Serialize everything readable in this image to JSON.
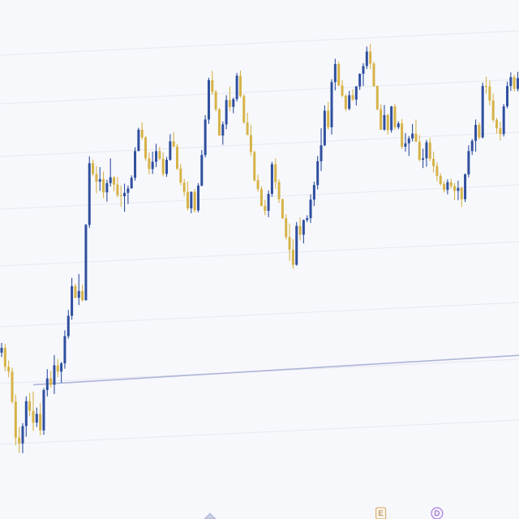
{
  "chart_data": {
    "type": "candlestick",
    "title": "",
    "xlabel": "",
    "ylabel": "",
    "axes_visible": false,
    "grid": true,
    "ylim": [
      0,
      100
    ],
    "colors": {
      "up": "#2f4f9f",
      "down": "#d6b347",
      "grid": "#e7e9f0",
      "background": "#f7f8fc",
      "trendline": "#aeb6d8",
      "event_marker_border": "#d7a15c",
      "dividend_marker_border": "#9b6ad6"
    },
    "trendline": {
      "from": [
        9,
        21.8
      ],
      "to": [
        153,
        28.1
      ]
    },
    "markers": [
      {
        "type": "event",
        "index": 108,
        "label": "E"
      },
      {
        "type": "dividend",
        "index": 124,
        "label": "D"
      }
    ],
    "candles": [
      [
        28.4,
        30.4,
        27.5,
        29.4
      ],
      [
        29.4,
        30.2,
        24.6,
        25.5
      ],
      [
        25.5,
        26.8,
        23.3,
        24.5
      ],
      [
        24.5,
        25.3,
        17.9,
        18.3
      ],
      [
        18.3,
        19.8,
        9.3,
        10.9
      ],
      [
        10.9,
        13.1,
        7.8,
        9.7
      ],
      [
        9.7,
        13.9,
        7.7,
        13.3
      ],
      [
        13.3,
        19.4,
        11.1,
        18.4
      ],
      [
        18.4,
        20.1,
        15.3,
        16.4
      ],
      [
        16.4,
        20.4,
        12.3,
        14.0
      ],
      [
        14.0,
        17.1,
        13.1,
        15.8
      ],
      [
        15.8,
        18.0,
        11.4,
        12.4
      ],
      [
        12.4,
        21.1,
        11.5,
        20.7
      ],
      [
        20.7,
        25.0,
        19.4,
        23.1
      ],
      [
        23.1,
        24.6,
        21.2,
        21.8
      ],
      [
        21.8,
        27.9,
        19.9,
        25.8
      ],
      [
        25.8,
        27.1,
        23.4,
        24.5
      ],
      [
        24.5,
        26.5,
        22.2,
        26.2
      ],
      [
        26.2,
        33.0,
        25.1,
        31.8
      ],
      [
        31.8,
        37.2,
        31.3,
        36.0
      ],
      [
        36.0,
        43.8,
        35.2,
        42.1
      ],
      [
        42.1,
        42.6,
        39.6,
        39.7
      ],
      [
        39.7,
        44.6,
        38.2,
        41.1
      ],
      [
        41.1,
        42.4,
        38.9,
        39.2
      ],
      [
        39.2,
        54.9,
        39.1,
        54.7
      ],
      [
        54.7,
        68.8,
        54.1,
        67.4
      ],
      [
        67.4,
        68.2,
        64.7,
        65.2
      ],
      [
        65.2,
        66.8,
        61.2,
        63.6
      ],
      [
        63.6,
        66.6,
        61.7,
        64.1
      ],
      [
        64.1,
        65.7,
        60.2,
        61.4
      ],
      [
        61.4,
        64.0,
        59.5,
        63.3
      ],
      [
        63.3,
        68.4,
        62.6,
        64.5
      ],
      [
        64.5,
        64.7,
        61.6,
        63.0
      ],
      [
        63.0,
        64.6,
        60.4,
        60.8
      ],
      [
        60.8,
        62.8,
        58.4,
        60.6
      ],
      [
        60.6,
        63.2,
        57.4,
        61.3
      ],
      [
        61.3,
        62.8,
        59.0,
        62.2
      ],
      [
        62.2,
        64.9,
        62.2,
        64.4
      ],
      [
        64.4,
        70.7,
        63.8,
        69.9
      ],
      [
        69.9,
        74.7,
        69.9,
        74.3
      ],
      [
        74.3,
        75.8,
        72.2,
        72.7
      ],
      [
        72.7,
        73.0,
        67.9,
        68.4
      ],
      [
        68.4,
        69.6,
        65.1,
        66.2
      ],
      [
        66.2,
        69.8,
        65.2,
        67.7
      ],
      [
        67.7,
        71.4,
        66.6,
        69.9
      ],
      [
        69.9,
        70.8,
        68.0,
        68.3
      ],
      [
        68.3,
        69.6,
        64.7,
        65.2
      ],
      [
        65.2,
        68.7,
        64.6,
        68.1
      ],
      [
        68.1,
        73.4,
        67.9,
        71.9
      ],
      [
        71.9,
        73.8,
        70.7,
        70.8
      ],
      [
        70.8,
        71.4,
        66.0,
        66.3
      ],
      [
        66.3,
        67.3,
        62.9,
        63.4
      ],
      [
        63.4,
        64.2,
        60.6,
        61.5
      ],
      [
        61.5,
        63.6,
        57.7,
        58.1
      ],
      [
        58.1,
        61.6,
        57.1,
        61.5
      ],
      [
        61.5,
        62.1,
        57.3,
        57.7
      ],
      [
        57.7,
        63.3,
        57.3,
        62.8
      ],
      [
        62.8,
        70.1,
        62.6,
        69.1
      ],
      [
        69.1,
        77.3,
        68.6,
        76.4
      ],
      [
        76.4,
        85.0,
        75.5,
        84.5
      ],
      [
        84.5,
        86.4,
        81.5,
        82.1
      ],
      [
        82.1,
        82.5,
        78.1,
        78.5
      ],
      [
        78.5,
        78.8,
        73.1,
        73.1
      ],
      [
        73.1,
        76.0,
        71.2,
        75.4
      ],
      [
        75.4,
        81.4,
        74.4,
        80.4
      ],
      [
        80.4,
        83.2,
        78.1,
        79.0
      ],
      [
        79.0,
        80.9,
        77.7,
        80.6
      ],
      [
        80.6,
        86.0,
        80.1,
        85.4
      ],
      [
        85.4,
        86.5,
        80.9,
        81.2
      ],
      [
        81.2,
        81.6,
        75.5,
        75.8
      ],
      [
        75.8,
        77.8,
        73.2,
        73.2
      ],
      [
        73.2,
        75.3,
        68.9,
        69.7
      ],
      [
        69.7,
        70.0,
        63.6,
        63.9
      ],
      [
        63.9,
        65.0,
        61.5,
        62.1
      ],
      [
        62.1,
        62.7,
        58.5,
        58.6
      ],
      [
        58.6,
        59.9,
        56.7,
        57.6
      ],
      [
        57.6,
        61.8,
        56.3,
        61.1
      ],
      [
        61.1,
        67.7,
        60.5,
        67.2
      ],
      [
        67.2,
        68.4,
        62.1,
        63.5
      ],
      [
        63.5,
        64.1,
        59.2,
        60.0
      ],
      [
        60.0,
        60.1,
        55.9,
        56.1
      ],
      [
        56.1,
        56.9,
        51.7,
        52.2
      ],
      [
        52.2,
        55.0,
        47.3,
        49.6
      ],
      [
        49.6,
        51.8,
        45.7,
        46.5
      ],
      [
        46.5,
        55.3,
        46.3,
        54.5
      ],
      [
        54.5,
        56.2,
        51.5,
        52.7
      ],
      [
        52.7,
        55.8,
        50.9,
        55.7
      ],
      [
        55.7,
        56.7,
        55.3,
        56.1
      ],
      [
        56.1,
        61.0,
        55.1,
        59.9
      ],
      [
        59.9,
        63.6,
        58.6,
        62.9
      ],
      [
        62.9,
        68.9,
        62.0,
        67.8
      ],
      [
        67.8,
        74.6,
        65.8,
        71.1
      ],
      [
        71.1,
        79.3,
        70.9,
        78.2
      ],
      [
        78.2,
        80.0,
        74.3,
        74.8
      ],
      [
        74.8,
        84.7,
        73.3,
        84.1
      ],
      [
        84.1,
        88.9,
        82.4,
        87.8
      ],
      [
        87.8,
        88.3,
        83.3,
        83.4
      ],
      [
        83.4,
        84.5,
        81.0,
        81.3
      ],
      [
        81.3,
        81.6,
        78.1,
        78.6
      ],
      [
        78.6,
        82.3,
        78.3,
        81.4
      ],
      [
        81.4,
        82.6,
        80.2,
        80.5
      ],
      [
        80.5,
        83.3,
        79.3,
        83.2
      ],
      [
        83.2,
        85.9,
        82.5,
        85.8
      ],
      [
        85.8,
        88.0,
        83.3,
        87.4
      ],
      [
        87.4,
        91.4,
        86.8,
        90.4
      ],
      [
        90.4,
        92.0,
        86.8,
        87.9
      ],
      [
        87.9,
        88.3,
        83.1,
        83.3
      ],
      [
        83.3,
        83.4,
        78.3,
        78.5
      ],
      [
        78.5,
        79.5,
        74.3,
        74.3
      ],
      [
        74.3,
        79.4,
        74.1,
        77.3
      ],
      [
        77.3,
        77.6,
        73.3,
        74.2
      ],
      [
        74.2,
        79.2,
        73.7,
        79.1
      ],
      [
        79.1,
        79.6,
        74.3,
        74.8
      ],
      [
        74.8,
        76.0,
        74.4,
        75.6
      ],
      [
        75.6,
        76.5,
        70.3,
        70.8
      ],
      [
        70.8,
        73.6,
        69.8,
        71.5
      ],
      [
        71.5,
        73.0,
        68.9,
        72.5
      ],
      [
        72.5,
        75.5,
        71.9,
        73.5
      ],
      [
        73.5,
        76.4,
        71.8,
        71.8
      ],
      [
        71.8,
        73.2,
        67.8,
        68.1
      ],
      [
        68.1,
        70.4,
        66.4,
        68.4
      ],
      [
        68.4,
        72.2,
        66.7,
        71.7
      ],
      [
        71.7,
        72.6,
        67.8,
        68.3
      ],
      [
        68.3,
        69.8,
        65.5,
        66.8
      ],
      [
        66.8,
        67.6,
        63.7,
        64.8
      ],
      [
        64.8,
        65.3,
        62.8,
        63.1
      ],
      [
        63.1,
        63.7,
        61.4,
        61.9
      ],
      [
        61.9,
        64.1,
        61.0,
        63.5
      ],
      [
        63.5,
        64.2,
        62.2,
        62.7
      ],
      [
        62.7,
        63.3,
        59.8,
        61.7
      ],
      [
        61.7,
        63.8,
        59.8,
        62.3
      ],
      [
        62.3,
        62.6,
        58.4,
        60.0
      ],
      [
        60.0,
        65.3,
        59.4,
        65.1
      ],
      [
        65.1,
        71.1,
        64.5,
        69.9
      ],
      [
        69.9,
        72.4,
        69.1,
        72.0
      ],
      [
        72.0,
        76.4,
        69.8,
        75.3
      ],
      [
        75.3,
        75.8,
        72.3,
        72.7
      ],
      [
        72.7,
        84.0,
        72.5,
        83.3
      ],
      [
        83.3,
        85.2,
        81.7,
        83.2
      ],
      [
        83.2,
        84.4,
        79.3,
        80.3
      ],
      [
        80.3,
        81.7,
        75.9,
        76.3
      ],
      [
        76.3,
        76.7,
        73.5,
        74.6
      ],
      [
        74.6,
        75.9,
        72.1,
        73.4
      ],
      [
        73.4,
        79.6,
        72.9,
        79.1
      ],
      [
        79.1,
        84.2,
        78.7,
        83.3
      ],
      [
        83.3,
        86.1,
        82.3,
        85.1
      ],
      [
        85.1,
        85.6,
        82.2,
        82.7
      ],
      [
        82.7,
        86.2,
        82.2,
        84.9
      ],
      [
        84.9,
        85.1,
        82.5,
        83.4
      ],
      [
        83.4,
        83.5,
        78.9,
        79.2
      ]
    ]
  }
}
